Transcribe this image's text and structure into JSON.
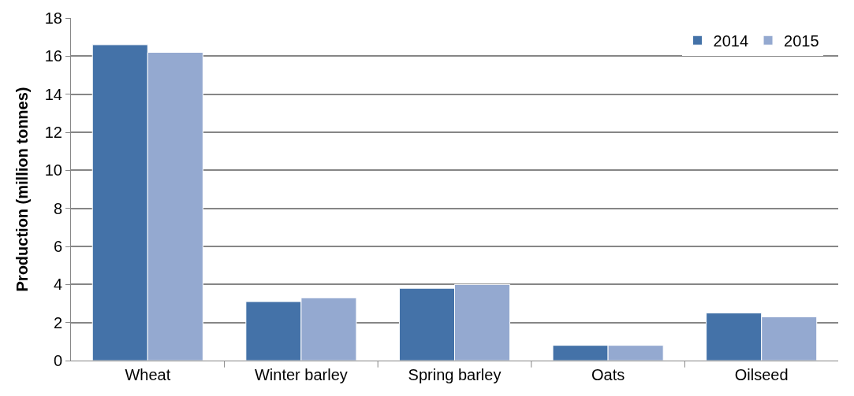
{
  "chart_data": {
    "type": "bar",
    "ylabel": "Production (million tonnes)",
    "categories": [
      "Wheat",
      "Winter barley",
      "Spring barley",
      "Oats",
      "Oilseed"
    ],
    "series": [
      {
        "name": "2014",
        "color": "#4472a8",
        "values": [
          16.6,
          3.1,
          3.8,
          0.8,
          2.5
        ]
      },
      {
        "name": "2015",
        "color": "#94a9d0",
        "values": [
          16.2,
          3.3,
          4.0,
          0.8,
          2.3
        ]
      }
    ],
    "ylim": [
      0,
      18
    ],
    "yticks": [
      0,
      2,
      4,
      6,
      8,
      10,
      12,
      14,
      16,
      18
    ],
    "grid": "y",
    "legend": "top right"
  }
}
